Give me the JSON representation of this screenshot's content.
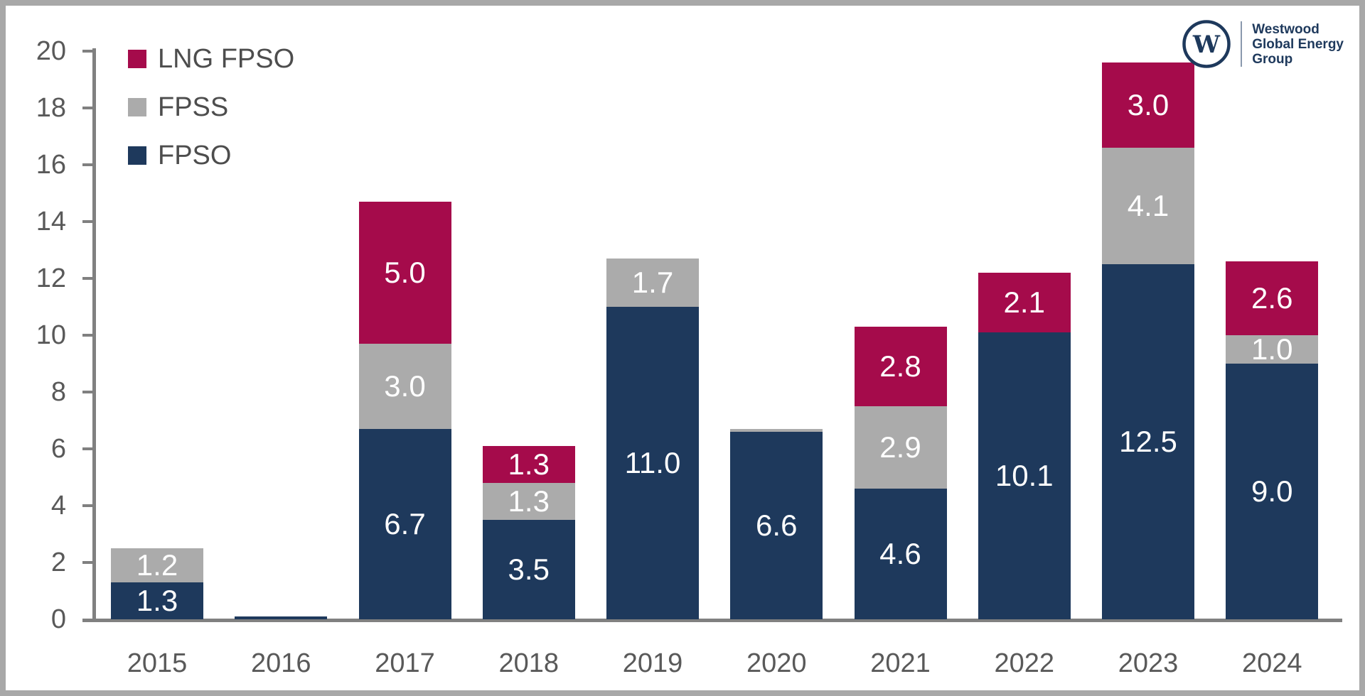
{
  "page": {
    "background": "#FFFFFF",
    "frame_border_color": "#A8A8A8"
  },
  "logo": {
    "monogram": "W",
    "company_lines": [
      "Westwood",
      "Global Energy",
      "Group"
    ],
    "color": "#1E395C"
  },
  "legend": {
    "position": "top-left",
    "items": [
      {
        "label": "LNG FPSO",
        "color": "#A50B4B"
      },
      {
        "label": "FPSS",
        "color": "#ABABAB"
      },
      {
        "label": "FPSO",
        "color": "#1E395C"
      }
    ]
  },
  "axis": {
    "label_color": "#595959",
    "line_color": "#808080",
    "ytick_labels": [
      "0",
      "2",
      "4",
      "6",
      "8",
      "10",
      "12",
      "14",
      "16",
      "18",
      "20"
    ]
  },
  "chart_data": {
    "type": "bar",
    "stacked": true,
    "title": "",
    "xlabel": "",
    "ylabel": "",
    "ylim": [
      0,
      20
    ],
    "ytick_step": 2,
    "grid": false,
    "legend_position": "top-left",
    "categories": [
      "2015",
      "2016",
      "2017",
      "2018",
      "2019",
      "2020",
      "2021",
      "2022",
      "2023",
      "2024"
    ],
    "series": [
      {
        "name": "FPSO",
        "color": "#1E395C",
        "values": [
          1.3,
          0.1,
          6.7,
          3.5,
          11.0,
          6.6,
          4.6,
          10.1,
          12.5,
          9.0
        ],
        "labels": [
          "1.3",
          null,
          "6.7",
          "3.5",
          "11.0",
          "6.6",
          "4.6",
          "10.1",
          "12.5",
          "9.0"
        ]
      },
      {
        "name": "FPSS",
        "color": "#ABABAB",
        "values": [
          1.2,
          0,
          3.0,
          1.3,
          1.7,
          0.1,
          2.9,
          0,
          4.1,
          1.0
        ],
        "labels": [
          "1.2",
          null,
          "3.0",
          "1.3",
          "1.7",
          null,
          "2.9",
          null,
          "4.1",
          "1.0"
        ]
      },
      {
        "name": "LNG FPSO",
        "color": "#A50B4B",
        "values": [
          0,
          0,
          5.0,
          1.3,
          0,
          0,
          2.8,
          2.1,
          3.0,
          2.6
        ],
        "labels": [
          null,
          null,
          "5.0",
          "1.3",
          null,
          null,
          "2.8",
          "2.1",
          "3.0",
          "2.6"
        ]
      }
    ],
    "totals": [
      2.5,
      0.1,
      14.7,
      6.1,
      12.7,
      6.7,
      10.3,
      12.2,
      19.6,
      12.6
    ]
  }
}
